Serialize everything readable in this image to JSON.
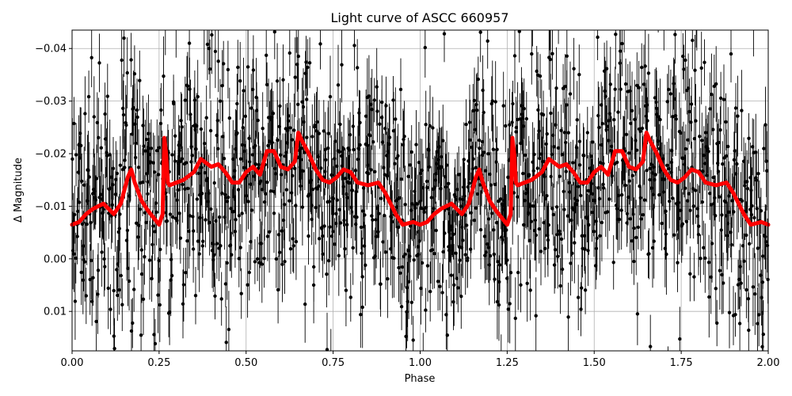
{
  "chart_data": {
    "type": "scatter",
    "title": "Light curve of ASCC 660957",
    "xlabel": "Phase",
    "ylabel": "Δ Magnitude",
    "xlim": [
      0.0,
      2.0
    ],
    "ylim": [
      0.0175,
      -0.0435
    ],
    "y_inverted": true,
    "grid": true,
    "x_ticks": [
      0.0,
      0.25,
      0.5,
      0.75,
      1.0,
      1.25,
      1.5,
      1.75,
      2.0
    ],
    "x_tick_labels": [
      "0.00",
      "0.25",
      "0.50",
      "0.75",
      "1.00",
      "1.25",
      "1.50",
      "1.75",
      "2.00"
    ],
    "y_ticks": [
      -0.04,
      -0.03,
      -0.02,
      -0.01,
      0.0,
      0.01
    ],
    "y_tick_labels": [
      "−0.04",
      "−0.03",
      "−0.02",
      "−0.01",
      "0.00",
      "0.01"
    ],
    "colors": {
      "points": "#000000",
      "errorbars": "#000000",
      "model": "#ff0000",
      "grid": "#b0b0b0"
    },
    "observations": {
      "description_of_spread": "dense noisy photometry with per-point error bars",
      "y_center_follows_model": true,
      "y_scatter_sigma": 0.012,
      "errorbar_half_length": 0.006
    },
    "model_curve": {
      "name": "",
      "x": [
        0.0,
        0.02,
        0.04,
        0.06,
        0.09,
        0.12,
        0.14,
        0.16,
        0.17,
        0.18,
        0.2,
        0.22,
        0.25,
        0.26,
        0.265,
        0.27,
        0.275,
        0.28,
        0.3,
        0.32,
        0.35,
        0.37,
        0.4,
        0.42,
        0.44,
        0.46,
        0.48,
        0.5,
        0.52,
        0.54,
        0.56,
        0.58,
        0.6,
        0.62,
        0.64,
        0.65,
        0.66,
        0.68,
        0.7,
        0.72,
        0.74,
        0.76,
        0.78,
        0.8,
        0.82,
        0.85,
        0.88,
        0.9,
        0.93,
        0.95,
        0.98,
        1.0,
        1.02,
        1.04,
        1.06,
        1.09,
        1.12,
        1.14,
        1.16,
        1.17,
        1.18,
        1.2,
        1.22,
        1.25,
        1.26,
        1.265,
        1.27,
        1.275,
        1.28,
        1.3,
        1.32,
        1.35,
        1.37,
        1.4,
        1.42,
        1.44,
        1.46,
        1.48,
        1.5,
        1.52,
        1.54,
        1.56,
        1.58,
        1.6,
        1.62,
        1.64,
        1.65,
        1.66,
        1.68,
        1.7,
        1.72,
        1.74,
        1.76,
        1.78,
        1.8,
        1.82,
        1.85,
        1.88,
        1.9,
        1.93,
        1.95,
        1.98,
        2.0
      ],
      "y": [
        -0.0065,
        -0.007,
        -0.0085,
        -0.0095,
        -0.0105,
        -0.0085,
        -0.0105,
        -0.0155,
        -0.017,
        -0.0145,
        -0.011,
        -0.009,
        -0.0065,
        -0.0085,
        -0.023,
        -0.02,
        -0.0145,
        -0.014,
        -0.0145,
        -0.015,
        -0.0165,
        -0.019,
        -0.0175,
        -0.018,
        -0.0165,
        -0.0145,
        -0.0145,
        -0.0165,
        -0.0175,
        -0.016,
        -0.0205,
        -0.0205,
        -0.0175,
        -0.017,
        -0.0185,
        -0.024,
        -0.0225,
        -0.02,
        -0.017,
        -0.015,
        -0.0145,
        -0.0155,
        -0.017,
        -0.0165,
        -0.0145,
        -0.014,
        -0.0145,
        -0.0125,
        -0.0085,
        -0.0065,
        -0.007,
        -0.0065,
        -0.007,
        -0.0085,
        -0.0095,
        -0.0105,
        -0.0085,
        -0.0105,
        -0.0155,
        -0.017,
        -0.0145,
        -0.011,
        -0.009,
        -0.0065,
        -0.0085,
        -0.023,
        -0.02,
        -0.0145,
        -0.014,
        -0.0145,
        -0.015,
        -0.0165,
        -0.019,
        -0.0175,
        -0.018,
        -0.0165,
        -0.0145,
        -0.0145,
        -0.0165,
        -0.0175,
        -0.016,
        -0.0205,
        -0.0205,
        -0.0175,
        -0.017,
        -0.0185,
        -0.024,
        -0.0225,
        -0.02,
        -0.017,
        -0.015,
        -0.0145,
        -0.0155,
        -0.017,
        -0.0165,
        -0.0145,
        -0.014,
        -0.0145,
        -0.0125,
        -0.0085,
        -0.0065,
        -0.007,
        -0.0065
      ]
    }
  }
}
